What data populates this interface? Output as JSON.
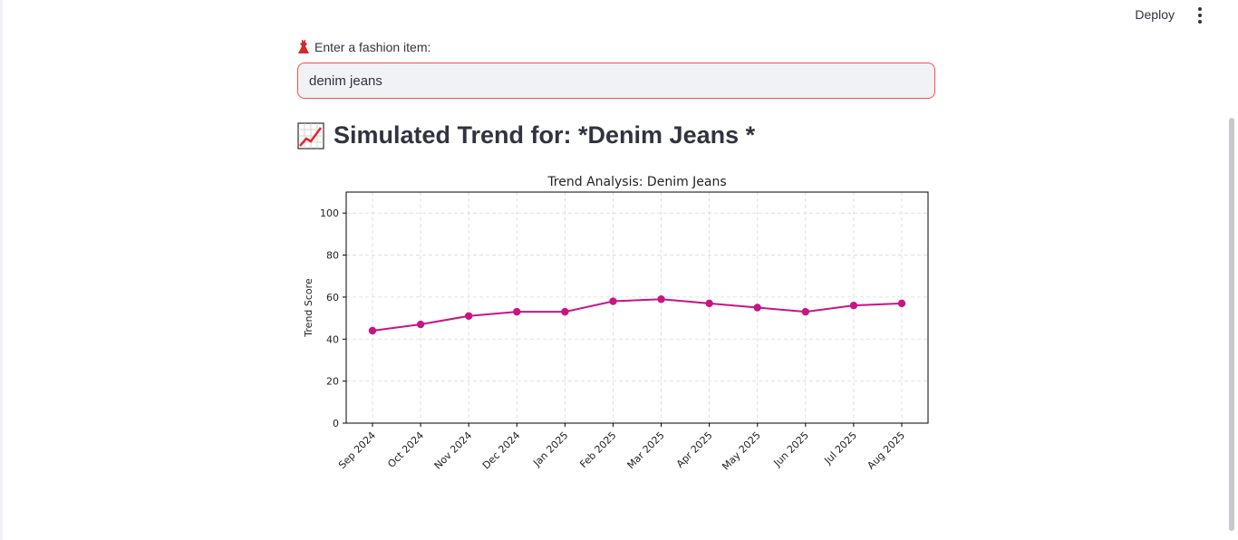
{
  "header": {
    "deploy_label": "Deploy",
    "menu_icon": "kebab-menu-icon"
  },
  "input": {
    "label": "Enter a fashion item:",
    "label_icon": "dress-icon",
    "value": "denim jeans"
  },
  "page": {
    "heading": "Simulated Trend for: *Denim Jeans *",
    "heading_icon": "chart-increasing-icon"
  },
  "chart_data": {
    "type": "line",
    "title": "Trend Analysis: Denim Jeans",
    "xlabel": "",
    "ylabel": "Trend Score",
    "categories": [
      "Sep 2024",
      "Oct 2024",
      "Nov 2024",
      "Dec 2024",
      "Jan 2025",
      "Feb 2025",
      "Mar 2025",
      "Apr 2025",
      "May 2025",
      "Jun 2025",
      "Jul 2025",
      "Aug 2025"
    ],
    "series": [
      {
        "values": [
          44,
          47,
          51,
          53,
          53,
          58,
          59,
          57,
          55,
          53,
          56,
          57
        ],
        "color": "#c71585"
      }
    ],
    "ylim": [
      0,
      110
    ],
    "yticks": [
      0,
      20,
      40,
      60,
      80,
      100
    ],
    "grid": true,
    "legend": "none"
  }
}
